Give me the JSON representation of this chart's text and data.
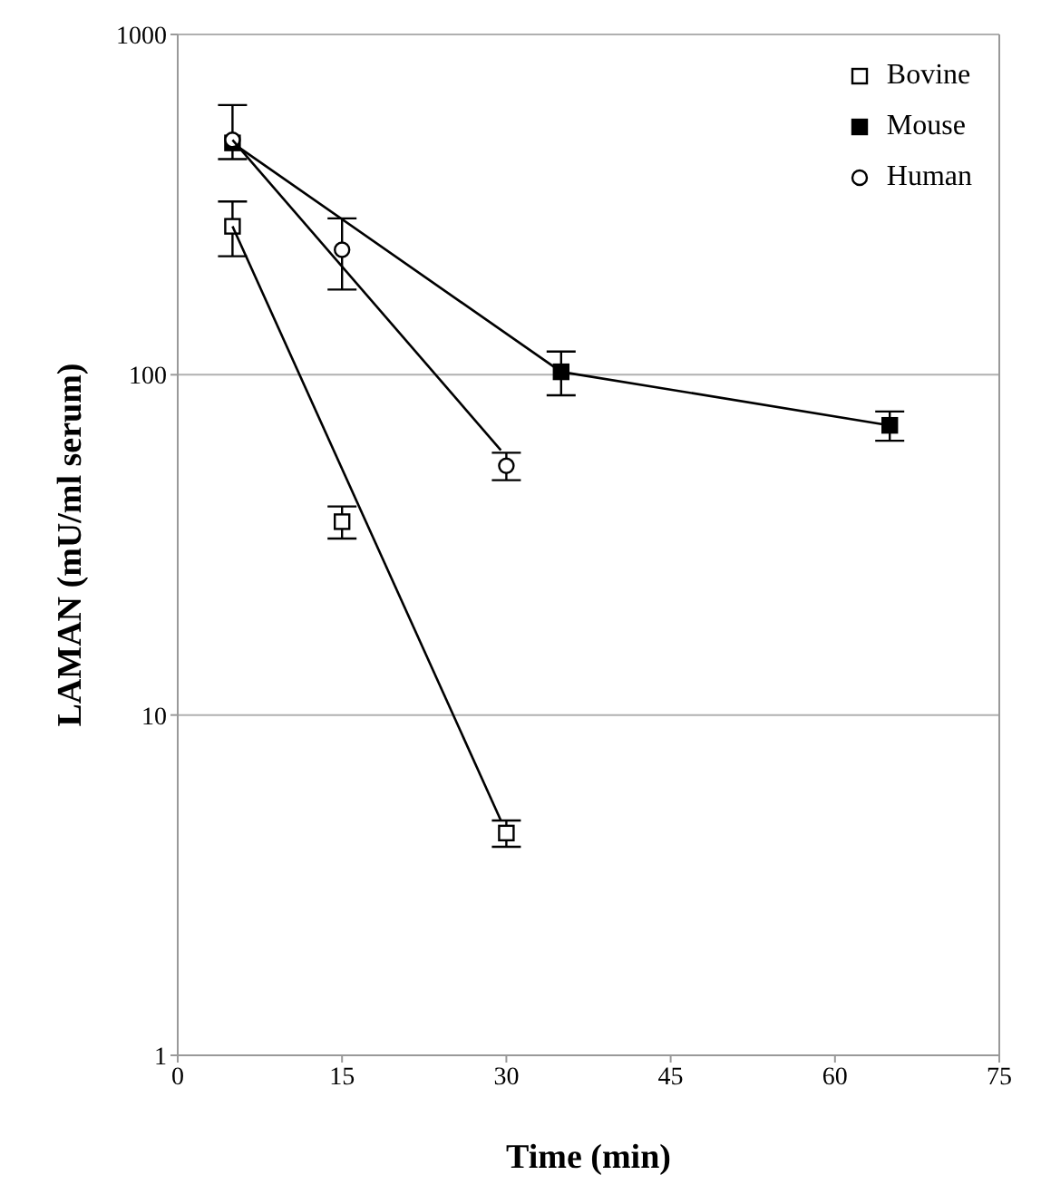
{
  "chart_data": {
    "type": "scatter",
    "xlabel": "Time (min)",
    "ylabel": "LAMAN (mU/ml serum)",
    "xlim": [
      0,
      75
    ],
    "xticks": [
      0,
      15,
      30,
      45,
      60,
      75
    ],
    "ylim": [
      1,
      1000
    ],
    "yticks": [
      1,
      10,
      100,
      1000
    ],
    "log": "y",
    "grid": "y",
    "legend": "top right",
    "series": [
      {
        "name": "Bovine",
        "type": "scatter",
        "marker": "square",
        "color": "#000000",
        "x": [
          5,
          15,
          30
        ],
        "values": [
          273,
          37,
          4.5
        ],
        "errors": [
          50,
          4,
          0.4
        ]
      },
      {
        "name": "Mouse",
        "type": "line",
        "marker": "square",
        "color": "#000000",
        "x": [
          5,
          35,
          65
        ],
        "values": [
          480,
          102,
          71
        ],
        "errors": [
          [
            430,
            620
          ],
          15,
          7
        ]
      },
      {
        "name": "Human",
        "type": "scatter",
        "marker": "circle",
        "color": "#000000",
        "x": [
          5,
          15,
          30
        ],
        "values": [
          490,
          233,
          54
        ],
        "errors": [
          null,
          55,
          5
        ]
      },
      {
        "type": "line",
        "marker": "none",
        "color": "#000000",
        "x": [
          5,
          29.5
        ],
        "values": [
          273,
          4.9
        ]
      },
      {
        "type": "line",
        "marker": "none",
        "color": "#000000",
        "x": [
          5,
          29.5
        ],
        "values": [
          490,
          60
        ]
      }
    ]
  }
}
